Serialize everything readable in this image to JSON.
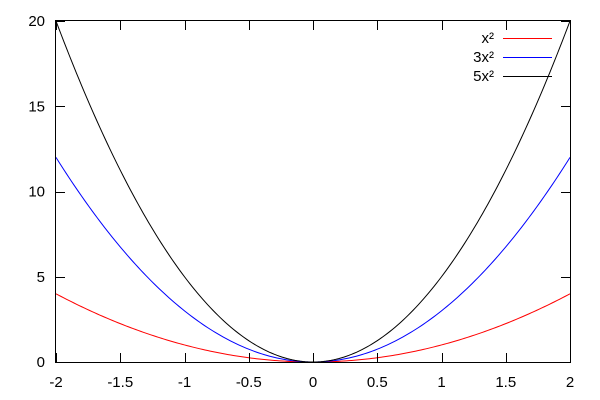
{
  "chart_data": {
    "type": "line",
    "title": "",
    "xlabel": "",
    "ylabel": "",
    "xlim": [
      -2,
      2
    ],
    "ylim": [
      0,
      20
    ],
    "x_ticks": [
      -2,
      -1.5,
      -1,
      -0.5,
      0,
      0.5,
      1,
      1.5,
      2
    ],
    "x_tick_labels": [
      "-2",
      "-1.5",
      "-1",
      "-0.5",
      "0",
      "0.5",
      "1",
      "1.5",
      "2"
    ],
    "y_ticks": [
      0,
      5,
      10,
      15,
      20
    ],
    "y_tick_labels": [
      "0",
      "5",
      "10",
      "15",
      "20"
    ],
    "grid": false,
    "legend_position": "top-right",
    "x": [
      -2,
      -1.75,
      -1.5,
      -1.25,
      -1,
      -0.75,
      -0.5,
      -0.25,
      0,
      0.25,
      0.5,
      0.75,
      1,
      1.25,
      1.5,
      1.75,
      2
    ],
    "series": [
      {
        "name": "x²",
        "coefficient": 1,
        "color": "#ff0000",
        "values": [
          4,
          3.0625,
          2.25,
          1.5625,
          1,
          0.5625,
          0.25,
          0.0625,
          0,
          0.0625,
          0.25,
          0.5625,
          1,
          1.5625,
          2.25,
          3.0625,
          4
        ]
      },
      {
        "name": "3x²",
        "coefficient": 3,
        "color": "#0000ff",
        "values": [
          12,
          9.1875,
          6.75,
          4.6875,
          3,
          1.6875,
          0.75,
          0.1875,
          0,
          0.1875,
          0.75,
          1.6875,
          3,
          4.6875,
          6.75,
          9.1875,
          12
        ]
      },
      {
        "name": "5x²",
        "coefficient": 5,
        "color": "#000000",
        "values": [
          20,
          15.3125,
          11.25,
          7.8125,
          5,
          2.8125,
          1.25,
          0.3125,
          0,
          0.3125,
          1.25,
          2.8125,
          5,
          7.8125,
          11.25,
          15.3125,
          20
        ]
      }
    ]
  }
}
